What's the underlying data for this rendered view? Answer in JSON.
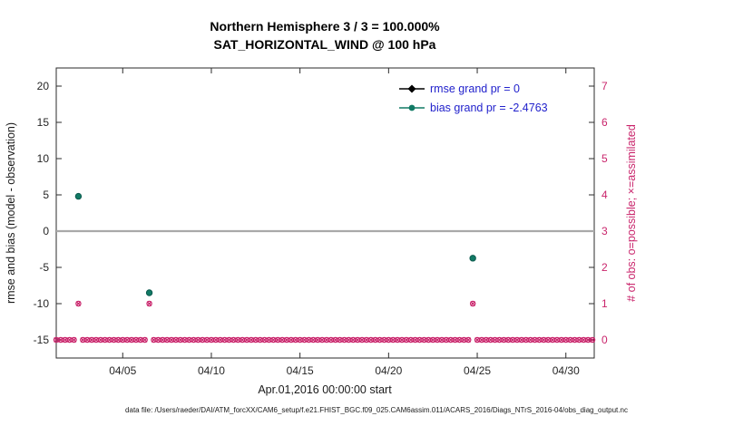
{
  "figure": {
    "caption": "data file: /Users/raeder/DAI/ATM_forcXX/CAM6_setup/f.e21.FHIST_BGC.f09_025.CAM6assim.011/ACARS_2016/Diags_NTrS_2016-04/obs_diag_output.nc"
  },
  "chart_data": {
    "type": "scatter",
    "title": "Northern Hemisphere 3 / 3 = 100.000%",
    "subtitle": "SAT_HORIZONTAL_WIND @ 100 hPa",
    "xlabel": "Apr.01,2016 00:00:00 start",
    "ylabel_left": "rmse and bias (model - observation)",
    "ylabel_right": "# of obs: o=possible; ×=assimilated",
    "xlim_days": [
      1.25,
      31.6
    ],
    "ylim_left": [
      -17.5,
      22.5
    ],
    "ylim_right": [
      -0.5,
      7.5
    ],
    "xticks": [
      {
        "day": 5,
        "label": "04/05"
      },
      {
        "day": 10,
        "label": "04/10"
      },
      {
        "day": 15,
        "label": "04/15"
      },
      {
        "day": 20,
        "label": "04/20"
      },
      {
        "day": 25,
        "label": "04/25"
      },
      {
        "day": 30,
        "label": "04/30"
      }
    ],
    "yticks_left": [
      20,
      15,
      10,
      5,
      0,
      -5,
      -10,
      -15
    ],
    "yticks_right": [
      7,
      6,
      5,
      4,
      3,
      2,
      1,
      0
    ],
    "zero_reference": 0,
    "legend": [
      {
        "label": "rmse grand pr = 0",
        "marker": "diamond",
        "color": "#000000"
      },
      {
        "label": "bias grand pr = -2.4763",
        "marker": "circle",
        "color": "#117a65"
      }
    ],
    "series": [
      {
        "name": "rmse",
        "marker": "diamond",
        "color": "#000000",
        "points": []
      },
      {
        "name": "bias",
        "marker": "circle",
        "color": "#117a65",
        "points": [
          {
            "day": 2.5,
            "value": 4.8
          },
          {
            "day": 6.5,
            "value": -8.5
          },
          {
            "day": 24.75,
            "value": -3.73
          }
        ]
      }
    ],
    "obs_counts": {
      "axis": "right",
      "marker_possible": "o",
      "marker_assimilated": "x",
      "color": "#c9246b",
      "start_day": 1.25,
      "end_day": 31.5,
      "step_day": 0.25,
      "count_one_days": [
        2.5,
        6.5,
        24.75
      ],
      "default_count": 0
    },
    "colors": {
      "axis": "#2b2b2b",
      "tick_label": "#262626",
      "zero_line": "#a9a9a9",
      "right_axis": "#c9246b",
      "legend_text": "#2222cc",
      "bias": "#117a65",
      "bias_edge": "#0c5a4e",
      "rmse": "#000000",
      "obs": "#c9246b"
    }
  }
}
